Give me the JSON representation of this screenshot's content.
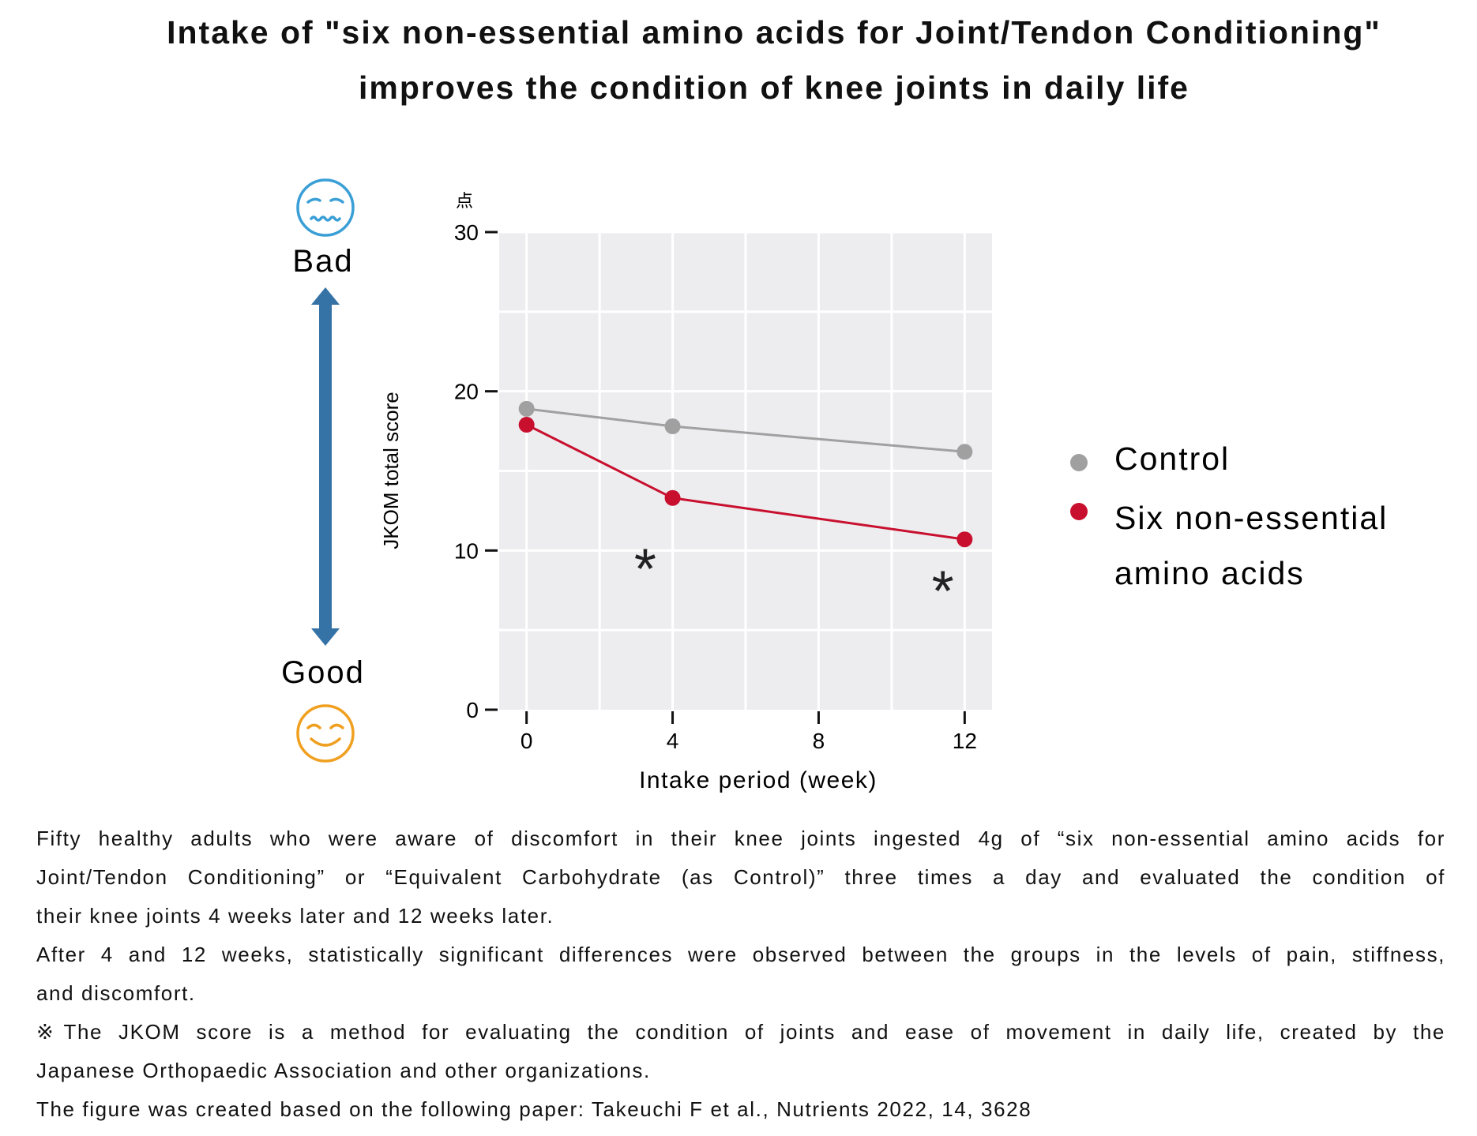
{
  "title": {
    "line1": "Intake of \"six non-essential amino acids for Joint/Tendon Conditioning\"",
    "line2": "improves the condition of knee joints in daily life"
  },
  "scale_indicator": {
    "bad_label": "Bad",
    "good_label": "Good",
    "bad_icon": "worried-face-icon",
    "good_icon": "smiling-face-icon",
    "arrow_color": "#3572a5",
    "bad_color": "#3a9fd6",
    "good_color": "#f0a020"
  },
  "chart_data": {
    "type": "line",
    "xlabel": "Intake period (week)",
    "ylabel": "JKOM total score",
    "yunit": "点",
    "x": [
      0,
      4,
      12
    ],
    "xticks": [
      "0",
      "4",
      "8",
      "12"
    ],
    "xtick_values": [
      0,
      4,
      8,
      12
    ],
    "yticks": [
      "0",
      "10",
      "20",
      "30"
    ],
    "ytick_values": [
      0,
      10,
      20,
      30
    ],
    "xlim": [
      -0.75,
      12.75
    ],
    "ylim": [
      0,
      30
    ],
    "grid": true,
    "legend_position": "right",
    "series": [
      {
        "name": "Control",
        "color": "#a0a0a0",
        "values": [
          18.9,
          17.8,
          16.2
        ]
      },
      {
        "name": "Six non-essential amino acids",
        "name_lines": [
          "Six non-essential",
          "amino acids"
        ],
        "color": "#c8102e",
        "values": [
          17.9,
          13.3,
          10.7
        ]
      }
    ],
    "annotations": [
      {
        "text": "*",
        "x": 3.25,
        "y": 9.6
      },
      {
        "text": "*",
        "x": 11.4,
        "y": 8.2
      }
    ]
  },
  "description": {
    "paragraphs": [
      [
        "Fifty healthy adults who were aware of discomfort in their knee joints ingested 4g of “six non-essential amino acids for",
        "Joint/Tendon Conditioning” or “Equivalent Carbohydrate (as Control)” three times a day and evaluated the condition of",
        "their knee joints 4 weeks later and 12 weeks later."
      ],
      [
        "After 4 and 12 weeks, statistically significant differences were observed between the groups in the levels of pain, stiffness,",
        "and discomfort."
      ],
      [
        "※The JKOM score is a method for evaluating the condition of joints and ease of movement in daily life, created by the",
        "Japanese Orthopaedic Association and other organizations."
      ],
      [
        "The figure was created based on the following paper: Takeuchi F et al., Nutrients 2022, 14, 3628"
      ]
    ]
  }
}
